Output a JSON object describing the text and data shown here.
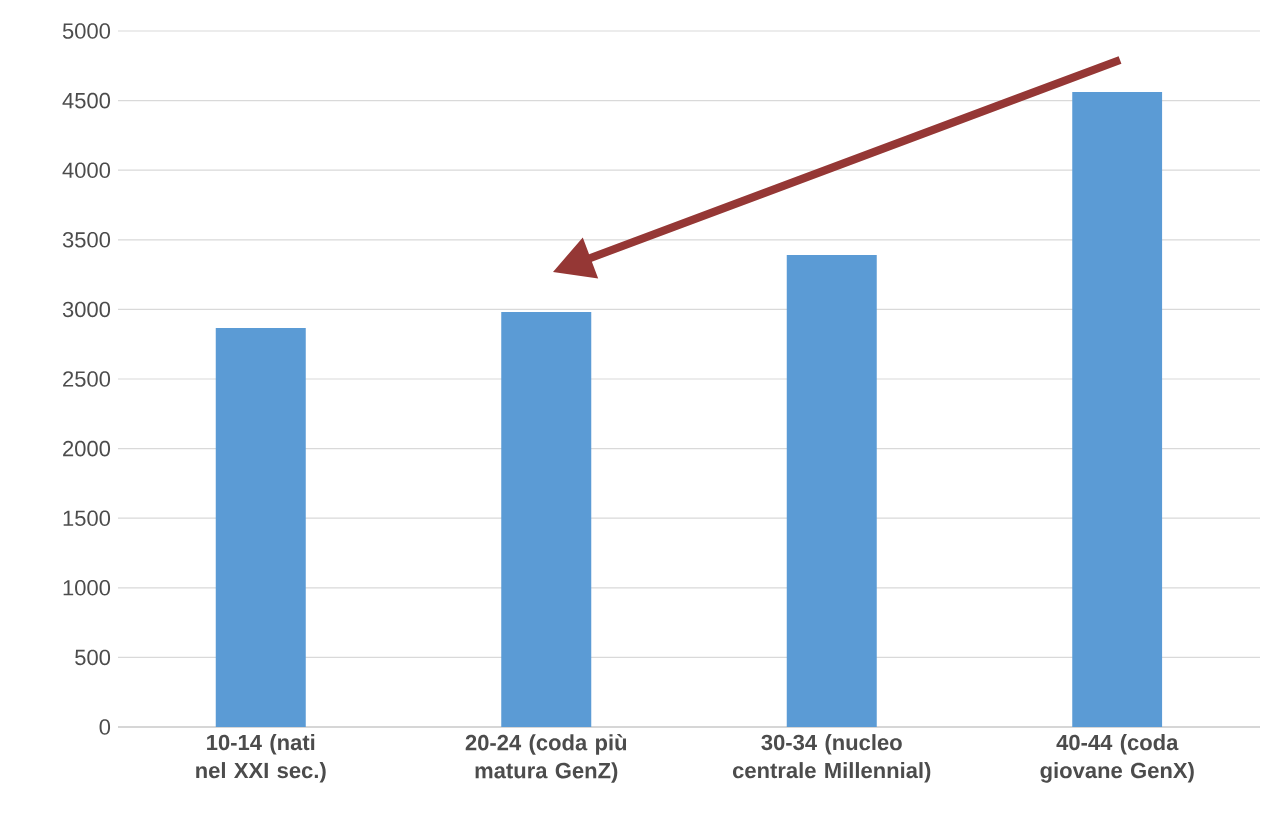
{
  "chart_data": {
    "type": "bar",
    "categories": [
      "10-14 (nati nel XXI sec.)",
      "20-24 (coda più matura GenZ)",
      "30-34 (nucleo centrale Millennial)",
      "40-44 (coda giovane GenX)"
    ],
    "values": [
      2866,
      2981,
      3391,
      4562
    ],
    "color": "#5b9bd5",
    "ylim": [
      0,
      5000
    ],
    "yticks": [
      0,
      500,
      1000,
      1500,
      2000,
      2500,
      3000,
      3500,
      4000,
      4500,
      5000
    ],
    "grid": "y"
  }
}
